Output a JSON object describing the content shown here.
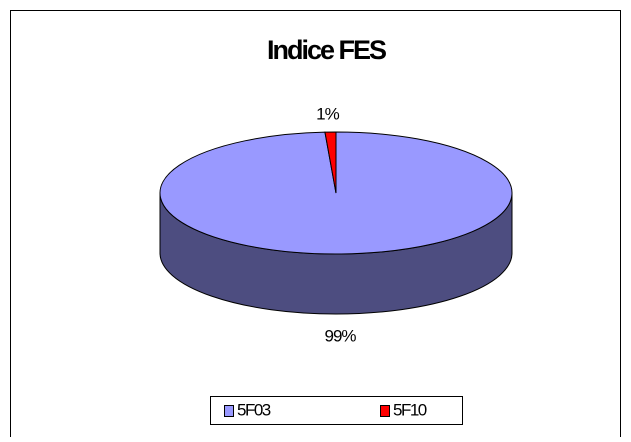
{
  "chart_data": {
    "type": "pie3d",
    "title": "Indice FES",
    "categories": [
      "5F03",
      "5F10"
    ],
    "values": [
      99,
      1
    ],
    "value_labels": [
      "99%",
      "1%"
    ],
    "colors": [
      "#9999ff",
      "#ff0000"
    ],
    "legend": "bottom"
  }
}
